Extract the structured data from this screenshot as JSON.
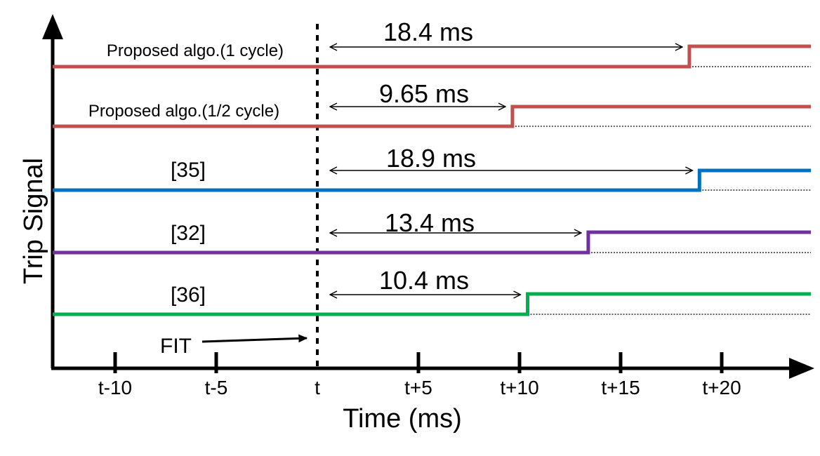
{
  "chart_data": {
    "type": "line",
    "title": "",
    "xlabel": "Time (ms)",
    "ylabel": "Trip Signal",
    "x_ticks": [
      {
        "label": "t-10",
        "offset": -10
      },
      {
        "label": "t-5",
        "offset": -5
      },
      {
        "label": "t",
        "offset": 0
      },
      {
        "label": "t+5",
        "offset": 5
      },
      {
        "label": "t+10",
        "offset": 10
      },
      {
        "label": "t+15",
        "offset": 15
      },
      {
        "label": "t+20",
        "offset": 20
      }
    ],
    "xlim": [
      -13.3,
      23.8
    ],
    "fault_marker": {
      "label": "FIT",
      "offset": 0
    },
    "series": [
      {
        "name": "Proposed algo.(1 cycle)",
        "trip_time": 18.4,
        "delay_label": "18.4 ms",
        "color": "#c0504d"
      },
      {
        "name": "Proposed algo.(1/2 cycle)",
        "trip_time": 9.65,
        "delay_label": "9.65 ms",
        "color": "#c0504d"
      },
      {
        "name": "[35]",
        "trip_time": 18.9,
        "delay_label": "18.9 ms",
        "color": "#0070c0"
      },
      {
        "name": "[32]",
        "trip_time": 13.4,
        "delay_label": "13.4 ms",
        "color": "#7030a0"
      },
      {
        "name": "[36]",
        "trip_time": 10.4,
        "delay_label": "10.4 ms",
        "color": "#00b050"
      }
    ]
  }
}
